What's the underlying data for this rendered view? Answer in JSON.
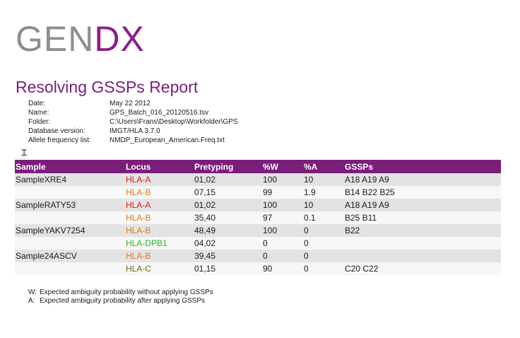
{
  "logo": {
    "part1": "GEN",
    "part2": "DX"
  },
  "title": "Resolving GSSPs Report",
  "meta": [
    {
      "key": "Date:",
      "value": "May 22 2012"
    },
    {
      "key": "Name:",
      "value": "GPS_Batch_016_20120516.tsv"
    },
    {
      "key": "Folder:",
      "value": "C:\\Users\\Frans\\Desktop\\Workfolder\\GPS"
    },
    {
      "key": "Database version:",
      "value": "IMGT/HLA 3.7.0"
    },
    {
      "key": "Allele frequency list:",
      "value": "NMDP_European_American.Freq.txt"
    }
  ],
  "table": {
    "headers": [
      "Sample",
      "Locus",
      "Pretyping",
      "%W",
      "%A",
      "GSSPs"
    ],
    "rows": [
      {
        "sample": "SampleXRE4",
        "locus": "HLA-A",
        "locus_color": "#d62020",
        "pretyping": "01,02",
        "w": "100",
        "a": "10",
        "gssps": "A18 A19 A9"
      },
      {
        "sample": "",
        "locus": "HLA-B",
        "locus_color": "#e07a1f",
        "pretyping": "07,15",
        "w": "99",
        "a": "1.9",
        "gssps": "B14 B22 B25"
      },
      {
        "sample": "SampleRATY53",
        "locus": "HLA-A",
        "locus_color": "#d62020",
        "pretyping": "01,02",
        "w": "100",
        "a": "10",
        "gssps": "A18 A19 A9"
      },
      {
        "sample": "",
        "locus": "HLA-B",
        "locus_color": "#e07a1f",
        "pretyping": "35,40",
        "w": "97",
        "a": "0.1",
        "gssps": "B25 B11"
      },
      {
        "sample": "SampleYAKV7254",
        "locus": "HLA-B",
        "locus_color": "#e07a1f",
        "pretyping": "48,49",
        "w": "100",
        "a": "0",
        "gssps": "B22"
      },
      {
        "sample": "",
        "locus": "HLA-DPB1",
        "locus_color": "#2bb52b",
        "pretyping": "04,02",
        "w": "0",
        "a": "0",
        "gssps": ""
      },
      {
        "sample": "Sample24ASCV",
        "locus": "HLA-B",
        "locus_color": "#e07a1f",
        "pretyping": "39,45",
        "w": "0",
        "a": "0",
        "gssps": ""
      },
      {
        "sample": "",
        "locus": "HLA-C",
        "locus_color": "#6b6b1e",
        "pretyping": "01,15",
        "w": "90",
        "a": "0",
        "gssps": "C20 C22"
      }
    ]
  },
  "legend": [
    {
      "key": "W:",
      "text": "Expected ambiguity probability without applying GSSPs"
    },
    {
      "key": "A:",
      "text": "Expected ambiguity probability after applying GSSPs"
    }
  ],
  "colors": {
    "brand": "#7a1e7b",
    "logo_gray": "#8c8f91",
    "band_gray": "#e3e3e3"
  }
}
